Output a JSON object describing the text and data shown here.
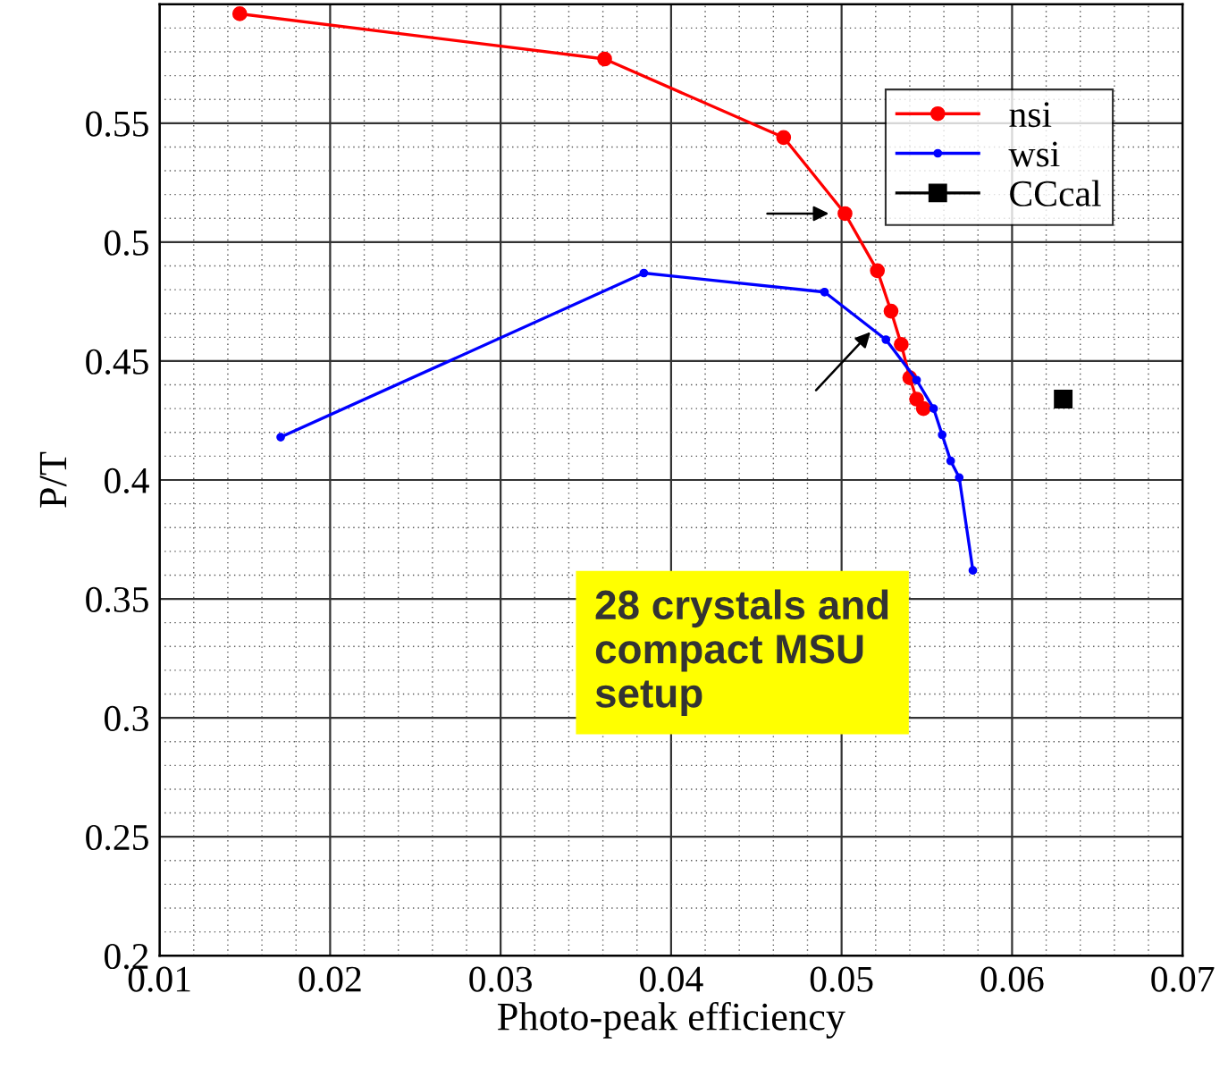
{
  "chart_data": {
    "type": "line",
    "xlabel": "Photo-peak efficiency",
    "ylabel": "P/T",
    "xlim": [
      0.01,
      0.07
    ],
    "xticks": [
      0.01,
      0.02,
      0.03,
      0.04,
      0.05,
      0.06,
      0.07
    ],
    "ylim": [
      0.2,
      0.6
    ],
    "yticks": [
      0.2,
      0.25,
      0.3,
      0.35,
      0.4,
      0.45,
      0.5,
      0.55
    ],
    "grid": true,
    "legend": "top right",
    "marker": "circle",
    "line_style": "solid",
    "series": [
      {
        "name": "nsi",
        "color": "#ff0000",
        "x": [
          0.0147,
          0.0361,
          0.0466,
          0.0502,
          0.0521,
          0.0529,
          0.0535,
          0.054,
          0.0544,
          0.0548
        ],
        "values": [
          0.596,
          0.577,
          0.544,
          0.512,
          0.488,
          0.471,
          0.457,
          0.443,
          0.434,
          0.43
        ]
      },
      {
        "name": "wsi",
        "color": "#0000ff",
        "x": [
          0.0171,
          0.0384,
          0.049,
          0.0526,
          0.0544,
          0.0554,
          0.0559,
          0.0564,
          0.0569,
          0.0577
        ],
        "values": [
          0.418,
          0.487,
          0.479,
          0.459,
          0.442,
          0.43,
          0.419,
          0.408,
          0.401,
          0.362
        ]
      },
      {
        "name": "CCcal",
        "color": "#000000",
        "marker": "square",
        "x": [
          0.063
        ],
        "values": [
          0.434
        ]
      }
    ],
    "annotations": [
      "28 crystals and\ncompact MSU\nsetup"
    ]
  }
}
